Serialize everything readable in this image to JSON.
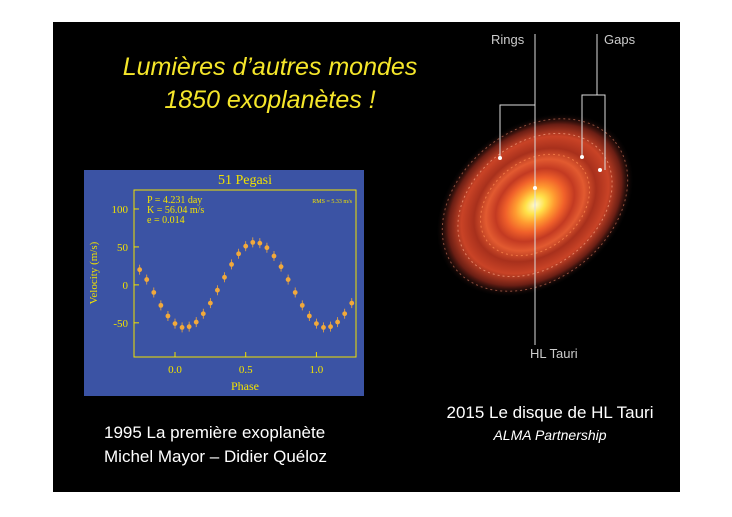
{
  "slide": {
    "title_lines": [
      "Lumières d’autres mondes",
      "1850 exoplanètes !"
    ],
    "left_caption": [
      "1995 La première exoplanète",
      "Michel Mayor – Didier Quéloz"
    ],
    "right_caption": [
      "2015 Le disque de HL Tauri",
      "ALMA Partnership"
    ],
    "disk_labels": {
      "rings": "Rings",
      "gaps": "Gaps",
      "star": "HL Tauri"
    }
  },
  "chart_data": {
    "type": "scatter",
    "title": "51 Pegasi",
    "annotations": [
      "P = 4.231 day",
      "K = 56.04 m/s",
      "e = 0.014",
      "RMS = 5.33 m/s"
    ],
    "x_label": "Phase",
    "y_label": "Velocity (m/s)",
    "xlim": [
      -0.29,
      1.28
    ],
    "ylim": [
      -95,
      125
    ],
    "xticks": [
      {
        "value": 0,
        "label": "0.0"
      },
      0.5,
      {
        "value": 1,
        "label": "1.0"
      }
    ],
    "yticks": [
      -50,
      0,
      50,
      100
    ],
    "x": [
      -0.25,
      -0.2,
      -0.15,
      -0.1,
      -0.05,
      0,
      0.05,
      0.1,
      0.15,
      0.2,
      0.25,
      0.3,
      0.35,
      0.4,
      0.45,
      0.5,
      0.55,
      0.6,
      0.65,
      0.7,
      0.75,
      0.8,
      0.85,
      0.9,
      0.95,
      1,
      1.05,
      1.1,
      1.15,
      1.2,
      1.25
    ],
    "values": [
      20,
      7,
      -10,
      -27,
      -41,
      -51,
      -56,
      -55,
      -49,
      -38,
      -24,
      -7,
      10,
      27,
      41,
      51,
      56,
      55,
      49,
      38,
      24,
      7,
      -10,
      -27,
      -41,
      -51,
      -56,
      -55,
      -49,
      -38,
      -24
    ],
    "color": "#f2a93b"
  }
}
